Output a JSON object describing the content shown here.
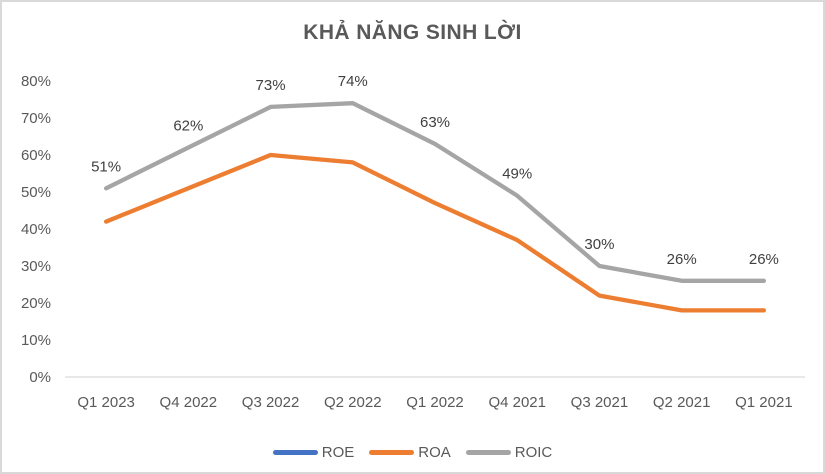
{
  "chart_data": {
    "type": "line",
    "title": "KHẢ NĂNG SINH LỜI",
    "categories": [
      "Q1 2023",
      "Q4 2022",
      "Q3 2022",
      "Q2 2022",
      "Q1 2022",
      "Q4 2021",
      "Q3 2021",
      "Q2 2021",
      "Q1 2021"
    ],
    "series": [
      {
        "name": "ROE",
        "color": "#4472C4",
        "values": null,
        "visible_in_plot": false
      },
      {
        "name": "ROA",
        "color": "#ED7D31",
        "values": [
          42,
          51,
          60,
          58,
          47,
          37,
          22,
          18,
          18
        ],
        "visible_in_plot": true
      },
      {
        "name": "ROIC",
        "color": "#A5A5A5",
        "values": [
          51,
          62,
          73,
          74,
          63,
          49,
          30,
          26,
          26
        ],
        "visible_in_plot": true,
        "data_labels": [
          "51%",
          "62%",
          "73%",
          "74%",
          "63%",
          "49%",
          "30%",
          "26%",
          "26%"
        ]
      }
    ],
    "y_axis": {
      "min": 0,
      "max": 80,
      "step": 10,
      "tick_labels": [
        "0%",
        "10%",
        "20%",
        "30%",
        "40%",
        "50%",
        "60%",
        "70%",
        "80%"
      ]
    },
    "legend": {
      "position": "bottom",
      "entries": [
        "ROE",
        "ROA",
        "ROIC"
      ]
    },
    "grid": false,
    "styles": {
      "title_color": "#595959",
      "tick_label_color": "#595959",
      "data_label_color": "#404040",
      "axis_line_color": "#D9D9D9",
      "border_color": "#D9D9D9",
      "background": "#FFFFFF"
    }
  }
}
